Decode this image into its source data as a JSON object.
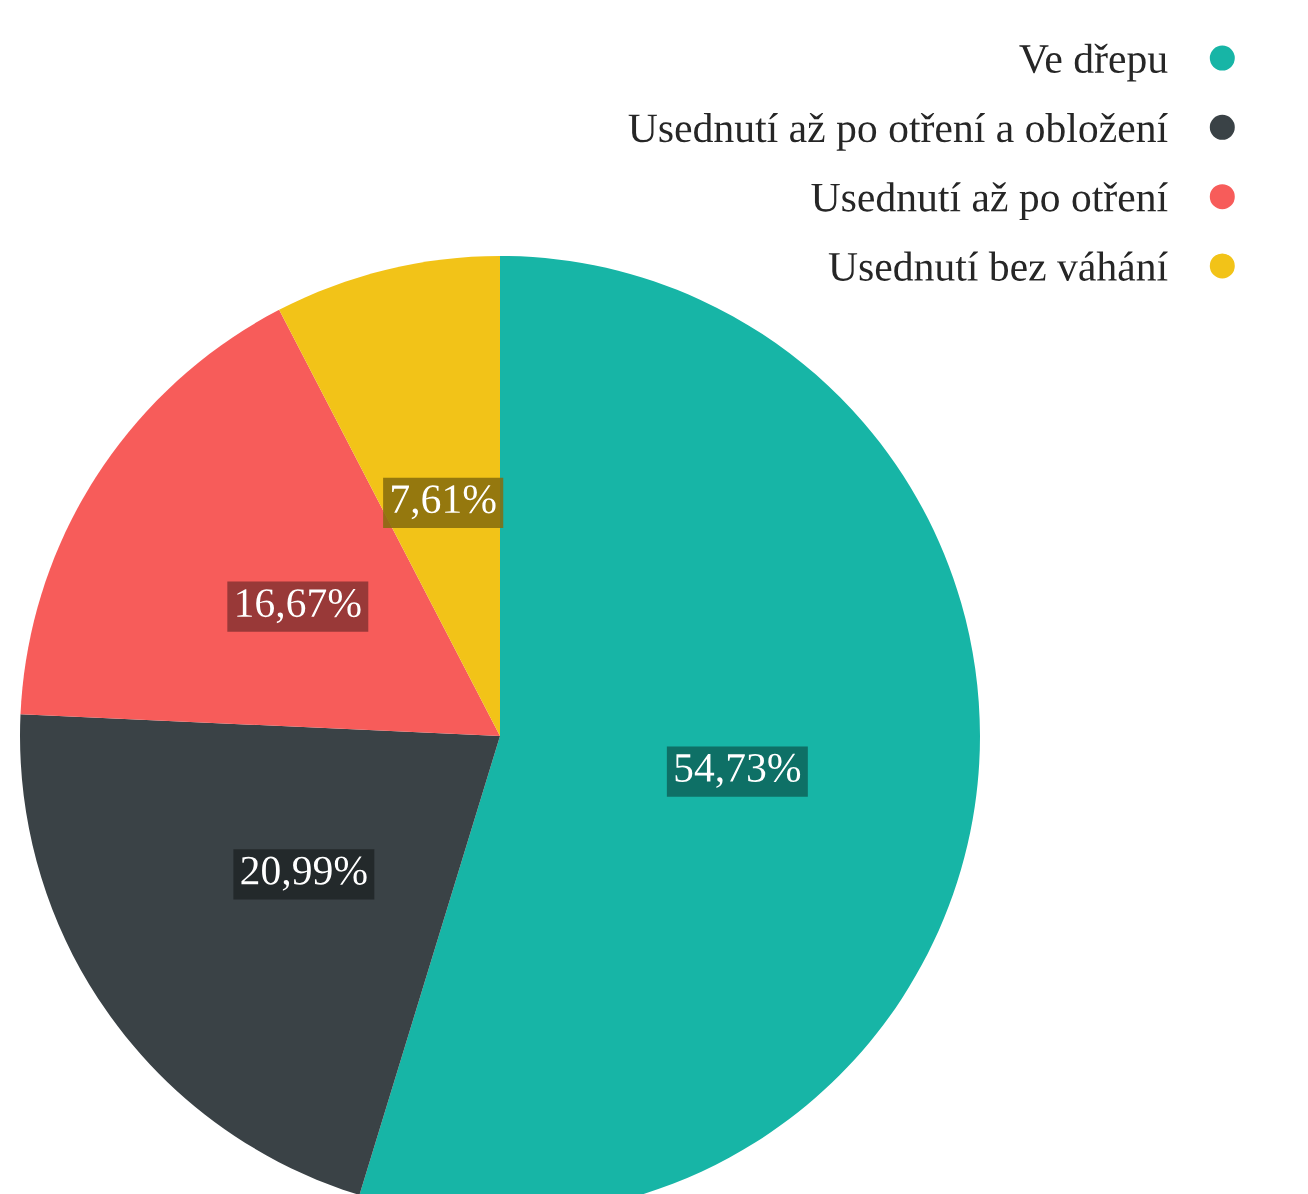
{
  "chart_data": {
    "type": "pie",
    "categories": [
      "Ve dřepu",
      "Usednutí až po otření a obložení",
      "Usednutí až po otření",
      "Usednutí bez váhání"
    ],
    "values": [
      54.73,
      20.99,
      16.67,
      7.61
    ],
    "colors": [
      "#17b5a6",
      "#3a4246",
      "#f75c5a",
      "#f2c318"
    ],
    "value_labels": [
      "54,73%",
      "20,99%",
      "16,67%",
      "7,61%"
    ],
    "legend": "top right"
  }
}
